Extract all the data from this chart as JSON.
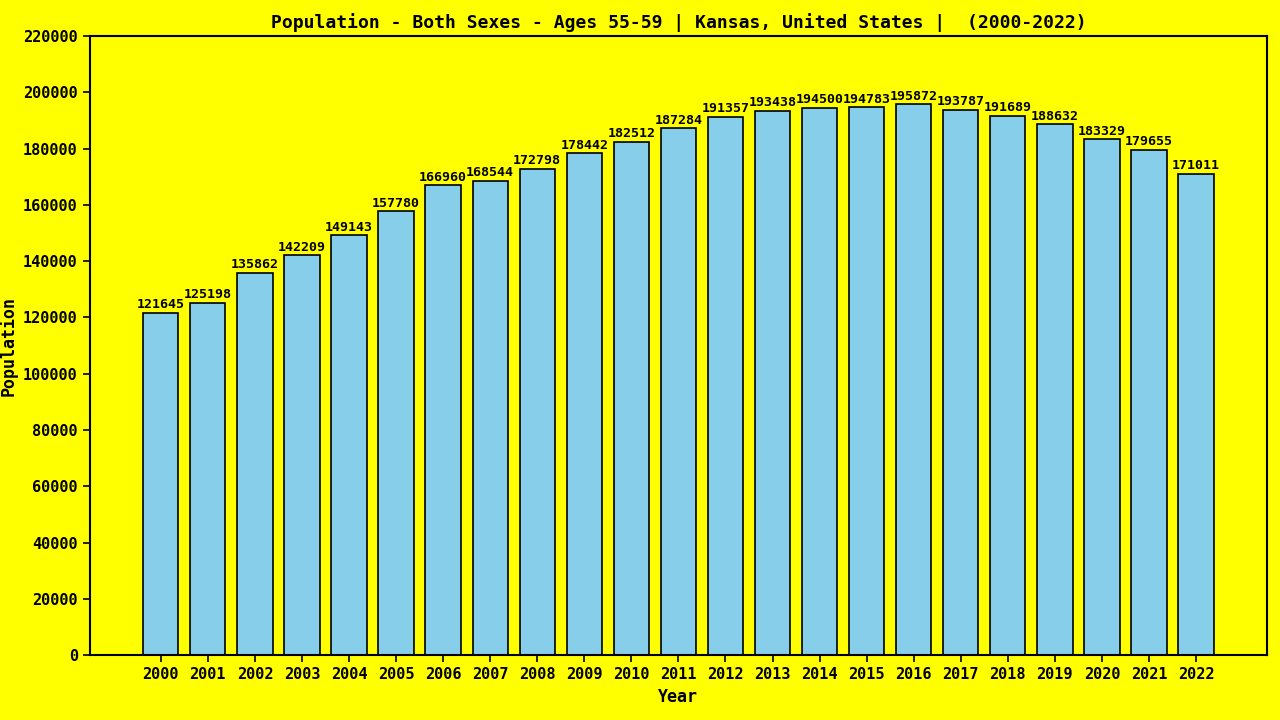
{
  "title": "Population - Both Sexes - Ages 55-59 | Kansas, United States |  (2000-2022)",
  "xlabel": "Year",
  "ylabel": "Population",
  "background_color": "#FFFF00",
  "bar_color": "#87CEEB",
  "bar_edge_color": "#000000",
  "years": [
    2000,
    2001,
    2002,
    2003,
    2004,
    2005,
    2006,
    2007,
    2008,
    2009,
    2010,
    2011,
    2012,
    2013,
    2014,
    2015,
    2016,
    2017,
    2018,
    2019,
    2020,
    2021,
    2022
  ],
  "values": [
    121645,
    125198,
    135862,
    142209,
    149143,
    157780,
    166960,
    168544,
    172798,
    178442,
    182512,
    187284,
    191357,
    193438,
    194500,
    194783,
    195872,
    193787,
    191689,
    188632,
    183329,
    179655,
    171011
  ],
  "ylim": [
    0,
    220000
  ],
  "yticks": [
    0,
    20000,
    40000,
    60000,
    80000,
    100000,
    120000,
    140000,
    160000,
    180000,
    200000,
    220000
  ],
  "title_fontsize": 13,
  "label_fontsize": 12,
  "tick_fontsize": 11,
  "annotation_fontsize": 9.5
}
